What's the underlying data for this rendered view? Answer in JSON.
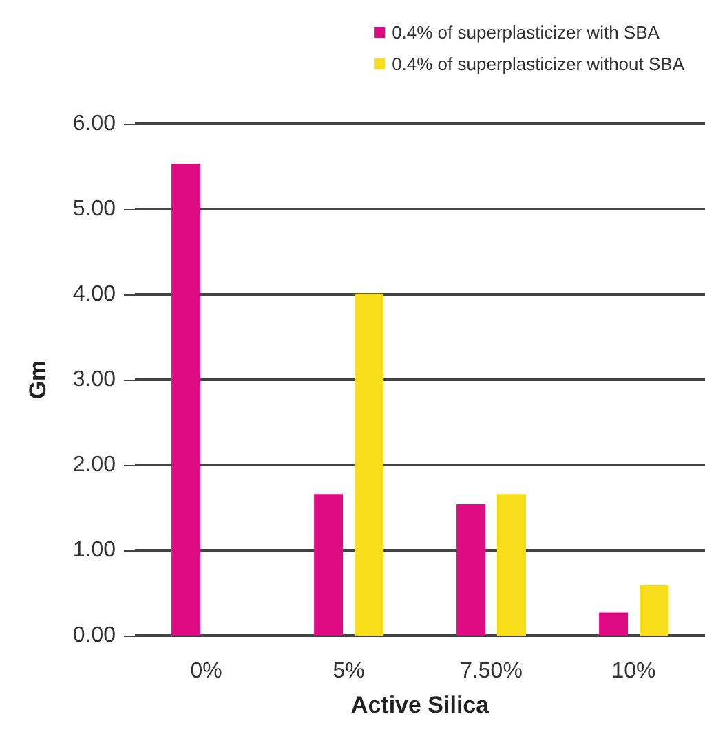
{
  "chart_data": {
    "type": "bar",
    "xlabel": "Active Silica",
    "ylabel": "Gm",
    "categories": [
      "0%",
      "5%",
      "7.50%",
      "10%"
    ],
    "series": [
      {
        "name": "0.4% of superplasticizer with SBA",
        "color": "#de0a84",
        "values": [
          5.53,
          1.66,
          1.54,
          0.27
        ]
      },
      {
        "name": "0.4% of superplasticizer without SBA",
        "color": "#f8de1a",
        "values": [
          null,
          4.01,
          1.66,
          0.59
        ]
      }
    ],
    "ylim": [
      0,
      6
    ],
    "yticks": [
      {
        "value": 0,
        "label": "0.00"
      },
      {
        "value": 1,
        "label": "1.00"
      },
      {
        "value": 2,
        "label": "2.00"
      },
      {
        "value": 3,
        "label": "3.00"
      },
      {
        "value": 4,
        "label": "4.00"
      },
      {
        "value": 5,
        "label": "5.00"
      },
      {
        "value": 6,
        "label": "6.00"
      }
    ],
    "grid": "y",
    "legend": "top right"
  }
}
